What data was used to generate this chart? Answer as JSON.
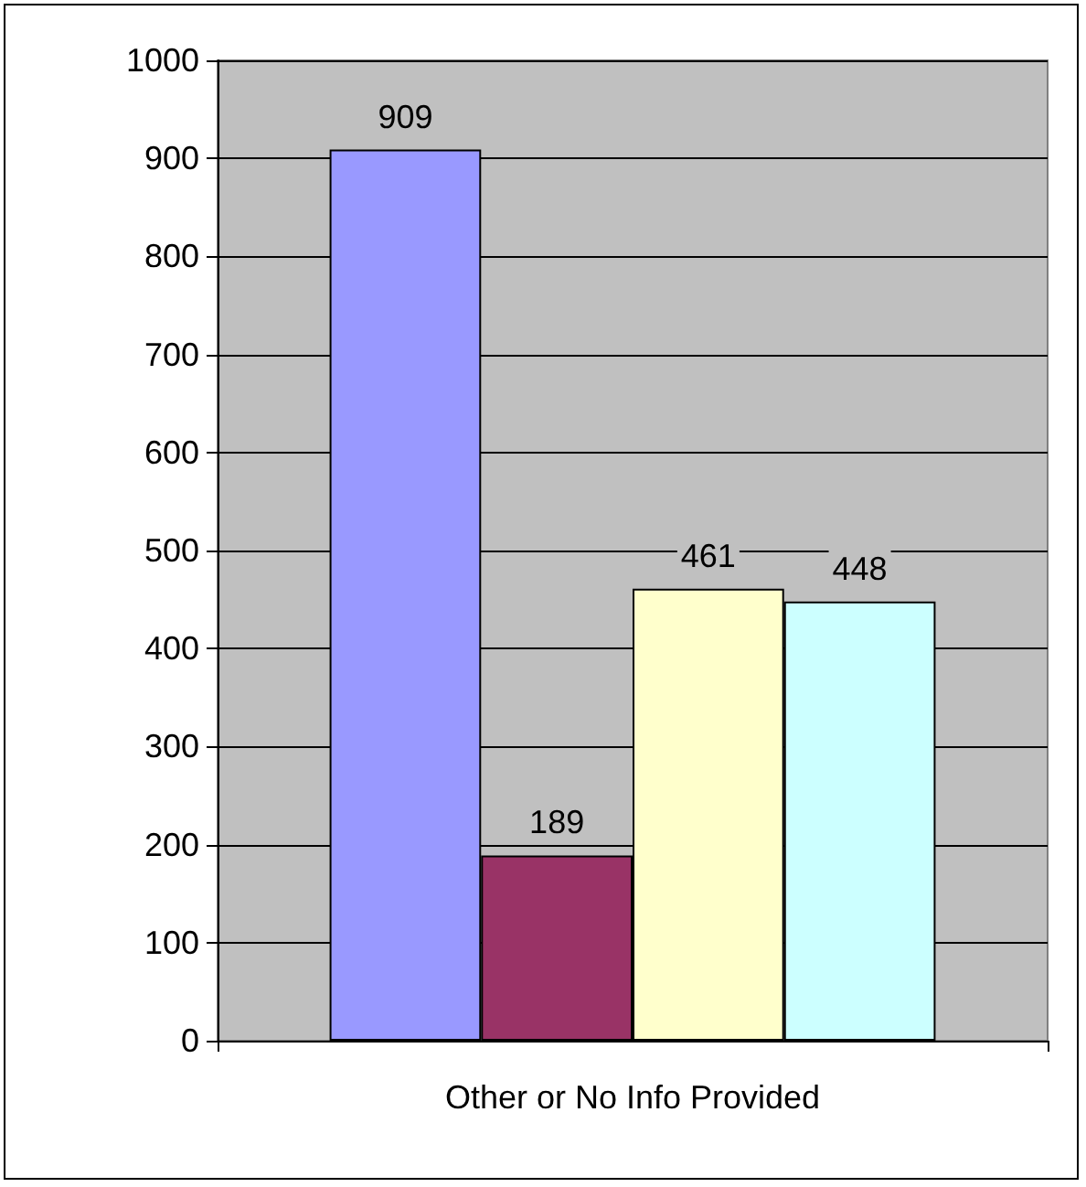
{
  "chart_data": {
    "type": "bar",
    "categories": [
      "Other or No Info Provided"
    ],
    "series": [
      {
        "color": "#9999ff",
        "values": [
          909
        ]
      },
      {
        "color": "#993366",
        "values": [
          189
        ]
      },
      {
        "color": "#ffffcc",
        "values": [
          461
        ]
      },
      {
        "color": "#ccffff",
        "values": [
          448
        ]
      }
    ],
    "ylim": [
      0,
      1000
    ],
    "yticks": [
      0,
      100,
      200,
      300,
      400,
      500,
      600,
      700,
      800,
      900,
      1000
    ],
    "grid": "y",
    "data_labels": true
  }
}
